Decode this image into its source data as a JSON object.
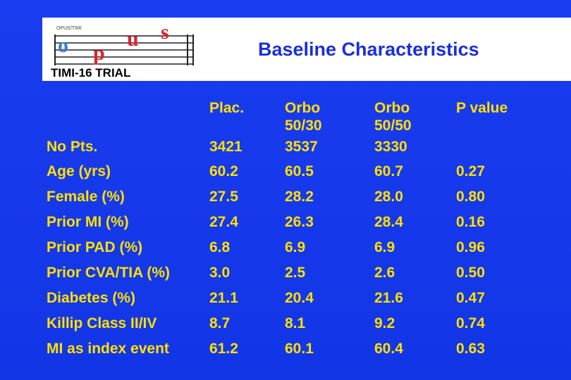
{
  "logo": {
    "small_text": "OPUS/TIMI",
    "letters": [
      "o",
      "p",
      "u",
      "s"
    ],
    "subtitle": "TIMI-16 TRIAL"
  },
  "title": "Baseline Characteristics",
  "columns": [
    "Plac.",
    "Orbo\n50/30",
    "Orbo\n50/50",
    "P value"
  ],
  "rows": [
    {
      "label": "No Pts.",
      "values": [
        "3421",
        "3537",
        "3330",
        ""
      ]
    },
    {
      "label": "Age (yrs)",
      "values": [
        "60.2",
        "60.5",
        "60.7",
        "0.27"
      ]
    },
    {
      "label": "Female (%)",
      "values": [
        "27.5",
        "28.2",
        "28.0",
        "0.80"
      ]
    },
    {
      "label": "Prior MI (%)",
      "values": [
        "27.4",
        "26.3",
        "28.4",
        "0.16"
      ]
    },
    {
      "label": "Prior PAD (%)",
      "values": [
        "6.8",
        "6.9",
        "6.9",
        "0.96"
      ]
    },
    {
      "label": "Prior CVA/TIA (%)",
      "values": [
        "3.0",
        "2.5",
        "2.6",
        "0.50"
      ]
    },
    {
      "label": "Diabetes (%)",
      "values": [
        "21.1",
        "20.4",
        "21.6",
        "0.47"
      ]
    },
    {
      "label": "Killip Class  II/IV",
      "values": [
        "8.7",
        "8.1",
        "9.2",
        "0.74"
      ]
    },
    {
      "label": "MI as index event",
      "values": [
        "61.2",
        "60.1",
        "60.4",
        "0.63"
      ]
    }
  ],
  "colors": {
    "background": "#1236e6",
    "text": "#ffe000",
    "title": "#1a2fd9"
  }
}
